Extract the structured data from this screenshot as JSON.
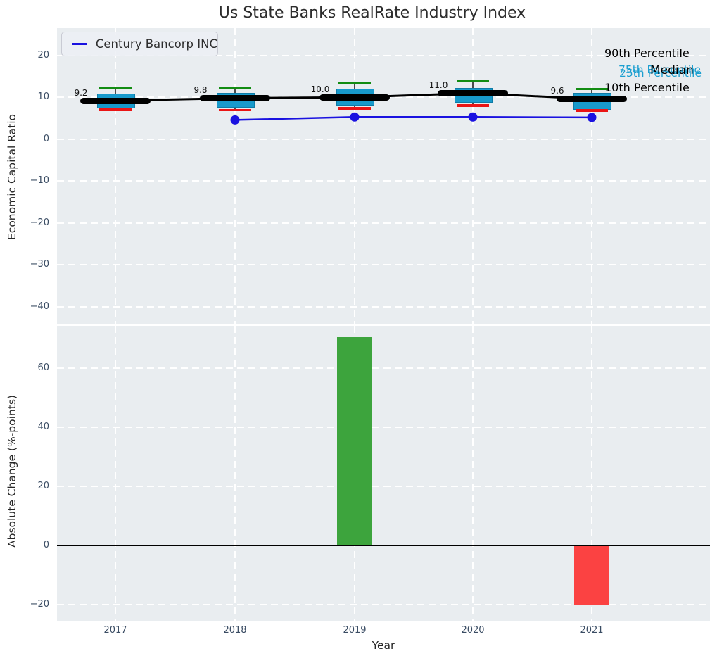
{
  "title": "Us State Banks RealRate Industry Index",
  "legend": {
    "label": "Century Bancorp INC"
  },
  "annotations": {
    "p90": "90th Percentile",
    "p75": "75th Percentile",
    "median": "Median",
    "p25": "25th Percentile",
    "p10": "10th Percentile"
  },
  "colors": {
    "plot_background": "#e9edf0",
    "box_fill": "#189acb",
    "box_edge": "#0e7ba6",
    "median_band": "#000000",
    "whisker_line": "#4a4a4a",
    "cap_90th": "#128c12",
    "cap_10th": "#ea1515",
    "company_line": "#1a12e0",
    "bar_positive": "#3da43d",
    "bar_negative": "#fb4242",
    "annotation_cyan": "#1b9fd0",
    "tick_text": "#3a4c63"
  },
  "chart_data": [
    {
      "type": "boxplot",
      "title": "Us State Banks RealRate Industry Index",
      "ylabel": "Economic Capital Ratio",
      "categories": [
        "2017",
        "2018",
        "2019",
        "2020",
        "2021"
      ],
      "yticks": [
        20,
        10,
        0,
        -10,
        -20,
        -30,
        -40
      ],
      "ylim": [
        -51,
        20
      ],
      "grid": true,
      "legend_position": "upper left",
      "series": [
        {
          "name": "90th Percentile",
          "values": [
            12.1,
            12.2,
            13.3,
            14.0,
            11.9
          ]
        },
        {
          "name": "75th Percentile",
          "values": [
            10.9,
            11.1,
            12.0,
            12.3,
            11.1
          ]
        },
        {
          "name": "Median",
          "values": [
            9.2,
            9.8,
            10.0,
            11.0,
            9.6
          ]
        },
        {
          "name": "25th Percentile",
          "values": [
            7.7,
            7.8,
            8.3,
            9.1,
            7.4
          ]
        },
        {
          "name": "10th Percentile",
          "values": [
            7.1,
            7.0,
            7.4,
            8.1,
            6.9
          ]
        },
        {
          "name": "Century Bancorp INC",
          "values": [
            null,
            4.6,
            5.3,
            5.3,
            5.2
          ]
        }
      ],
      "median_labels": [
        "9.2",
        "9.8",
        "10.0",
        "11.0",
        "9.6"
      ]
    },
    {
      "type": "bar",
      "ylabel": "Absolute Change (%-points)",
      "xlabel": "Year",
      "categories": [
        "2017",
        "2018",
        "2019",
        "2020",
        "2021"
      ],
      "values": [
        0,
        0,
        70.5,
        0,
        -20
      ],
      "yticks": [
        60,
        40,
        20,
        0,
        -20
      ],
      "ylim": [
        -26,
        74
      ],
      "grid": true
    }
  ]
}
